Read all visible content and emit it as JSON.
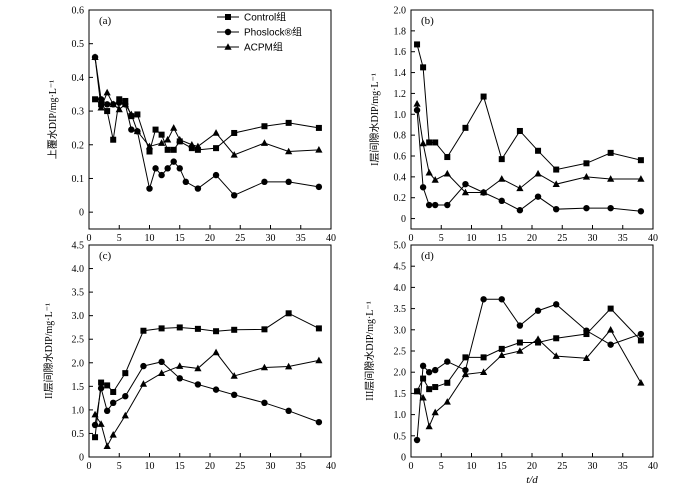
{
  "chart_data": [
    {
      "type": "line",
      "panel_label": "(a)",
      "ylabel": "上覆水DIP/mg·L⁻¹",
      "xlabel": "",
      "xlim": [
        0,
        40
      ],
      "ylim": [
        -0.05,
        0.6
      ],
      "yticks": [
        "0",
        "0.1",
        "0.2",
        "0.3",
        "0.4",
        "0.5",
        "0.6"
      ],
      "xticks": [
        "0",
        "5",
        "10",
        "15",
        "20",
        "25",
        "30",
        "35",
        "40"
      ],
      "legend_position": "top-right",
      "series": [
        {
          "name": "Control组",
          "marker": "square",
          "x": [
            1,
            2,
            3,
            4,
            5,
            6,
            7,
            8,
            10,
            11,
            12,
            13,
            14,
            15,
            17,
            18,
            21,
            24,
            29,
            33,
            38
          ],
          "y": [
            0.335,
            0.32,
            0.3,
            0.215,
            0.335,
            0.33,
            0.285,
            0.29,
            0.18,
            0.245,
            0.23,
            0.185,
            0.185,
            0.21,
            0.19,
            0.185,
            0.19,
            0.235,
            0.255,
            0.265,
            0.25
          ]
        },
        {
          "name": "Phoslock®组",
          "marker": "circle",
          "x": [
            1,
            2,
            3,
            4,
            5,
            6,
            7,
            8,
            10,
            11,
            12,
            13,
            14,
            15,
            16,
            18,
            21,
            24,
            29,
            33,
            38
          ],
          "y": [
            0.46,
            0.335,
            0.32,
            0.32,
            0.325,
            0.32,
            0.245,
            0.24,
            0.07,
            0.13,
            0.11,
            0.13,
            0.15,
            0.13,
            0.09,
            0.07,
            0.11,
            0.05,
            0.09,
            0.09,
            0.075
          ]
        },
        {
          "name": "ACPM组",
          "marker": "triangle",
          "x": [
            1,
            2,
            3,
            4,
            5,
            6,
            7,
            8,
            10,
            12,
            13,
            14,
            15,
            17,
            18,
            21,
            24,
            29,
            33,
            38
          ],
          "y": [
            0.46,
            0.31,
            0.355,
            0.32,
            0.305,
            0.32,
            0.29,
            0.24,
            0.195,
            0.205,
            0.215,
            0.25,
            0.215,
            0.2,
            0.195,
            0.235,
            0.17,
            0.205,
            0.18,
            0.185
          ]
        }
      ]
    },
    {
      "type": "line",
      "panel_label": "(b)",
      "ylabel": "I层间隙水DIP/mg·L⁻¹",
      "xlabel": "",
      "xlim": [
        0,
        40
      ],
      "ylim": [
        -0.1,
        2.0
      ],
      "yticks": [
        "0",
        "0.2",
        "0.4",
        "0.6",
        "0.8",
        "1.0",
        "1.2",
        "1.4",
        "1.6",
        "1.8",
        "2.0"
      ],
      "xticks": [
        "0",
        "5",
        "10",
        "15",
        "20",
        "25",
        "30",
        "35",
        "40"
      ],
      "series": [
        {
          "name": "Control组",
          "marker": "square",
          "x": [
            1,
            2,
            3,
            4,
            6,
            9,
            12,
            15,
            18,
            21,
            24,
            29,
            33,
            38
          ],
          "y": [
            1.67,
            1.45,
            0.73,
            0.73,
            0.59,
            0.87,
            1.17,
            0.57,
            0.84,
            0.65,
            0.47,
            0.53,
            0.63,
            0.56
          ]
        },
        {
          "name": "Phoslock®组",
          "marker": "circle",
          "x": [
            1,
            2,
            3,
            4,
            6,
            9,
            12,
            15,
            18,
            21,
            24,
            29,
            33,
            38
          ],
          "y": [
            1.04,
            0.3,
            0.13,
            0.13,
            0.13,
            0.33,
            0.25,
            0.17,
            0.08,
            0.21,
            0.09,
            0.1,
            0.1,
            0.07
          ]
        },
        {
          "name": "ACPM组",
          "marker": "triangle",
          "x": [
            1,
            2,
            3,
            4,
            6,
            9,
            12,
            15,
            18,
            21,
            24,
            29,
            33,
            38
          ],
          "y": [
            1.1,
            0.72,
            0.44,
            0.37,
            0.43,
            0.25,
            0.25,
            0.38,
            0.29,
            0.43,
            0.33,
            0.4,
            0.38,
            0.38
          ]
        }
      ]
    },
    {
      "type": "line",
      "panel_label": "(c)",
      "ylabel": "II层间隙水DIP/mg·L⁻¹",
      "xlabel": "",
      "xlim": [
        0,
        40
      ],
      "ylim": [
        0,
        4.5
      ],
      "yticks": [
        "0",
        "0.5",
        "1.0",
        "1.5",
        "2.0",
        "2.5",
        "3.0",
        "3.5",
        "4.0",
        "4.5"
      ],
      "xticks": [
        "0",
        "5",
        "10",
        "15",
        "20",
        "25",
        "30",
        "35",
        "40"
      ],
      "series": [
        {
          "name": "Control组",
          "marker": "square",
          "x": [
            1,
            2,
            3,
            4,
            6,
            9,
            12,
            15,
            18,
            21,
            24,
            29,
            33,
            38
          ],
          "y": [
            0.42,
            1.58,
            1.52,
            1.38,
            1.78,
            2.68,
            2.73,
            2.75,
            2.72,
            2.67,
            2.7,
            2.71,
            3.05,
            2.73
          ]
        },
        {
          "name": "Phoslock®组",
          "marker": "circle",
          "x": [
            1,
            2,
            3,
            4,
            6,
            9,
            12,
            15,
            18,
            21,
            24,
            29,
            33,
            38
          ],
          "y": [
            0.68,
            1.46,
            0.98,
            1.15,
            1.29,
            1.93,
            2.02,
            1.67,
            1.54,
            1.43,
            1.32,
            1.15,
            0.98,
            0.74
          ]
        },
        {
          "name": "ACPM组",
          "marker": "triangle",
          "x": [
            1,
            2,
            3,
            4,
            6,
            9,
            12,
            15,
            18,
            21,
            24,
            29,
            33,
            38
          ],
          "y": [
            0.9,
            0.7,
            0.23,
            0.47,
            0.88,
            1.55,
            1.78,
            1.93,
            1.88,
            2.22,
            1.72,
            1.9,
            1.92,
            2.05
          ]
        }
      ]
    },
    {
      "type": "line",
      "panel_label": "(d)",
      "ylabel": "III层间隙水DIP/mg·L⁻¹",
      "xlabel": "t/d",
      "xlim": [
        0,
        40
      ],
      "ylim": [
        0,
        5.0
      ],
      "yticks": [
        "0",
        "0.5",
        "1.0",
        "1.5",
        "2.0",
        "2.5",
        "3.0",
        "3.5",
        "4.0",
        "4.5",
        "5.0"
      ],
      "xticks": [
        "0",
        "5",
        "10",
        "15",
        "20",
        "25",
        "30",
        "35",
        "40"
      ],
      "series": [
        {
          "name": "Control组",
          "marker": "square",
          "x": [
            1,
            2,
            3,
            4,
            6,
            9,
            12,
            15,
            18,
            21,
            24,
            29,
            33,
            38
          ],
          "y": [
            1.55,
            1.85,
            1.6,
            1.65,
            1.75,
            2.35,
            2.35,
            2.55,
            2.7,
            2.7,
            2.8,
            2.9,
            3.5,
            2.75
          ]
        },
        {
          "name": "Phoslock®组",
          "marker": "circle",
          "x": [
            1,
            2,
            3,
            4,
            6,
            9,
            12,
            15,
            18,
            21,
            24,
            29,
            33,
            38
          ],
          "y": [
            0.4,
            2.15,
            2.0,
            2.05,
            2.25,
            2.05,
            3.72,
            3.72,
            3.1,
            3.45,
            3.6,
            2.98,
            2.65,
            2.9
          ]
        },
        {
          "name": "ACPM组",
          "marker": "triangle",
          "x": [
            1,
            2,
            3,
            4,
            6,
            9,
            12,
            15,
            18,
            21,
            24,
            29,
            33,
            38
          ],
          "y": [
            1.55,
            1.4,
            0.72,
            1.05,
            1.3,
            1.95,
            2.0,
            2.4,
            2.5,
            2.78,
            2.38,
            2.33,
            3.0,
            1.75
          ]
        }
      ]
    }
  ]
}
